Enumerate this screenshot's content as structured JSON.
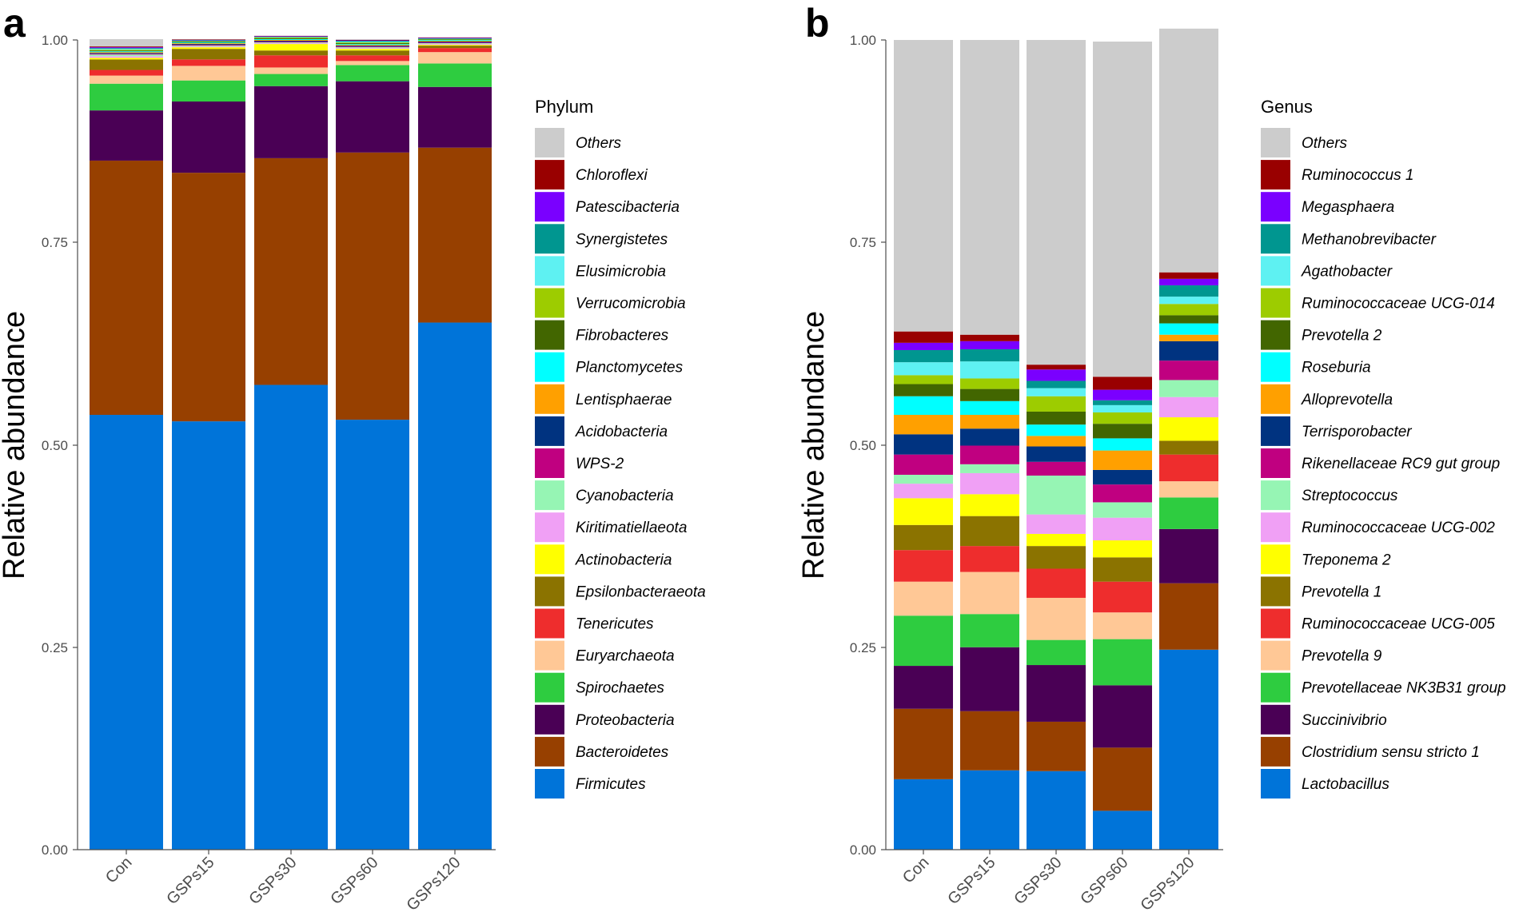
{
  "chart_data": [
    {
      "panel_label": "a",
      "type": "bar",
      "stacked": true,
      "ylabel": "Relative abundance",
      "ylim": [
        0,
        1
      ],
      "yticks": [
        "0.00",
        "0.25",
        "0.50",
        "0.75",
        "1.00"
      ],
      "categories": [
        "Con",
        "GSPs15",
        "GSPs30",
        "GSPs60",
        "GSPs120"
      ],
      "legend": {
        "title": "Phylum",
        "placement": "right"
      },
      "series": [
        {
          "name": "Firmicutes",
          "color": "#0074D9",
          "values": [
            0.537,
            0.529,
            0.574,
            0.531,
            0.651
          ]
        },
        {
          "name": "Bacteroidetes",
          "color": "#974000",
          "values": [
            0.314,
            0.307,
            0.28,
            0.33,
            0.216
          ]
        },
        {
          "name": "Proteobacteria",
          "color": "#4A0055",
          "values": [
            0.062,
            0.088,
            0.089,
            0.088,
            0.075
          ]
        },
        {
          "name": "Spirochaetes",
          "color": "#2ECC40",
          "values": [
            0.033,
            0.026,
            0.015,
            0.02,
            0.029
          ]
        },
        {
          "name": "Euryarchaeota",
          "color": "#FFC896",
          "values": [
            0.01,
            0.018,
            0.008,
            0.005,
            0.014
          ]
        },
        {
          "name": "Tenericutes",
          "color": "#EE2D2D",
          "values": [
            0.007,
            0.008,
            0.015,
            0.007,
            0.005
          ]
        },
        {
          "name": "Epsilonbacteraeota",
          "color": "#8B7300",
          "values": [
            0.013,
            0.013,
            0.006,
            0.006,
            0.003
          ]
        },
        {
          "name": "Actinobacteria",
          "color": "#FFFF00",
          "values": [
            0.002,
            0.002,
            0.008,
            0.002,
            0.001
          ]
        },
        {
          "name": "Kiritimatiellaeota",
          "color": "#F0A0F5",
          "values": [
            0.002,
            0.001,
            0.001,
            0.001,
            0.001
          ]
        },
        {
          "name": "Cyanobacteria",
          "color": "#96F5B4",
          "values": [
            0.002,
            0.001,
            0.001,
            0.001,
            0.001
          ]
        },
        {
          "name": "WPS-2",
          "color": "#C00080",
          "values": [
            0.001,
            0.001,
            0.001,
            0.001,
            0.001
          ]
        },
        {
          "name": "Acidobacteria",
          "color": "#003380",
          "values": [
            0.001,
            0.001,
            0.001,
            0.001,
            0.001
          ]
        },
        {
          "name": "Lentisphaerae",
          "color": "#FFA000",
          "values": [
            0.001,
            0.001,
            0.001,
            0.001,
            0.001
          ]
        },
        {
          "name": "Planctomycetes",
          "color": "#00FFFF",
          "values": [
            0.001,
            0.001,
            0.001,
            0.001,
            0.001
          ]
        },
        {
          "name": "Fibrobacteres",
          "color": "#426600",
          "values": [
            0.001,
            0.001,
            0.001,
            0.001,
            0.0005
          ]
        },
        {
          "name": "Verrucomicrobia",
          "color": "#9DCC00",
          "values": [
            0.001,
            0.0005,
            0.001,
            0.001,
            0.0005
          ]
        },
        {
          "name": "Elusimicrobia",
          "color": "#5EF1F2",
          "values": [
            0.001,
            0.0005,
            0.0005,
            0.001,
            0.0005
          ]
        },
        {
          "name": "Synergistetes",
          "color": "#009690",
          "values": [
            0.001,
            0.0005,
            0.0005,
            0.001,
            0.0005
          ]
        },
        {
          "name": "Patescibacteria",
          "color": "#7A00FF",
          "values": [
            0.001,
            0.0005,
            0.0005,
            0.0005,
            0.0005
          ]
        },
        {
          "name": "Chloroflexi",
          "color": "#990000",
          "values": [
            0.001,
            0.0005,
            0.0005,
            0.0005,
            0.0005
          ]
        },
        {
          "name": "Others",
          "color": "#CCCCCC",
          "values": [
            0.009,
            0.0005,
            0.0005,
            0.001,
            0.0005
          ]
        }
      ]
    },
    {
      "panel_label": "b",
      "type": "bar",
      "stacked": true,
      "ylabel": "Relative abundance",
      "ylim": [
        0,
        1
      ],
      "yticks": [
        "0.00",
        "0.25",
        "0.50",
        "0.75",
        "1.00"
      ],
      "categories": [
        "Con",
        "GSPs15",
        "GSPs30",
        "GSPs60",
        "GSPs120"
      ],
      "legend": {
        "title": "Genus",
        "placement": "right"
      },
      "series": [
        {
          "name": "Lactobacillus",
          "color": "#0074D9",
          "values": [
            0.087,
            0.098,
            0.097,
            0.048,
            0.247
          ]
        },
        {
          "name": "Clostridium sensu stricto 1",
          "color": "#974000",
          "values": [
            0.087,
            0.073,
            0.061,
            0.078,
            0.082
          ]
        },
        {
          "name": "Succinivibrio",
          "color": "#4A0055",
          "values": [
            0.053,
            0.079,
            0.07,
            0.077,
            0.067
          ]
        },
        {
          "name": "Prevotellaceae NK3B31 group",
          "color": "#2ECC40",
          "values": [
            0.062,
            0.041,
            0.031,
            0.057,
            0.039
          ]
        },
        {
          "name": "Prevotella 9",
          "color": "#FFC896",
          "values": [
            0.042,
            0.052,
            0.052,
            0.033,
            0.02
          ]
        },
        {
          "name": "Ruminococcaceae UCG-005",
          "color": "#EE2D2D",
          "values": [
            0.039,
            0.032,
            0.036,
            0.038,
            0.033
          ]
        },
        {
          "name": "Prevotella 1",
          "color": "#8B7300",
          "values": [
            0.031,
            0.037,
            0.028,
            0.03,
            0.017
          ]
        },
        {
          "name": "Treponema 2",
          "color": "#FFFF00",
          "values": [
            0.033,
            0.027,
            0.015,
            0.021,
            0.029
          ]
        },
        {
          "name": "Ruminococcaceae UCG-002",
          "color": "#F0A0F5",
          "values": [
            0.018,
            0.026,
            0.024,
            0.028,
            0.025
          ]
        },
        {
          "name": "Streptococcus",
          "color": "#96F5B4",
          "values": [
            0.011,
            0.011,
            0.048,
            0.019,
            0.021
          ]
        },
        {
          "name": "Rikenellaceae RC9 gut group",
          "color": "#C00080",
          "values": [
            0.025,
            0.023,
            0.017,
            0.022,
            0.024
          ]
        },
        {
          "name": "Terrisporobacter",
          "color": "#003380",
          "values": [
            0.025,
            0.021,
            0.019,
            0.018,
            0.024
          ]
        },
        {
          "name": "Alloprevotella",
          "color": "#FFA000",
          "values": [
            0.024,
            0.017,
            0.013,
            0.024,
            0.008
          ]
        },
        {
          "name": "Roseburia",
          "color": "#00FFFF",
          "values": [
            0.023,
            0.017,
            0.014,
            0.015,
            0.014
          ]
        },
        {
          "name": "Prevotella 2",
          "color": "#426600",
          "values": [
            0.015,
            0.015,
            0.016,
            0.018,
            0.01
          ]
        },
        {
          "name": "Ruminococcaceae UCG-014",
          "color": "#9DCC00",
          "values": [
            0.011,
            0.013,
            0.019,
            0.014,
            0.014
          ]
        },
        {
          "name": "Agathobacter",
          "color": "#5EF1F2",
          "values": [
            0.016,
            0.021,
            0.01,
            0.009,
            0.009
          ]
        },
        {
          "name": "Methanobrevibacter",
          "color": "#009690",
          "values": [
            0.015,
            0.015,
            0.009,
            0.006,
            0.014
          ]
        },
        {
          "name": "Megasphaera",
          "color": "#7A00FF",
          "values": [
            0.009,
            0.01,
            0.014,
            0.013,
            0.008
          ]
        },
        {
          "name": "Ruminococcus 1",
          "color": "#990000",
          "values": [
            0.014,
            0.008,
            0.006,
            0.016,
            0.008
          ]
        },
        {
          "name": "Others",
          "color": "#CCCCCC",
          "values": [
            0.36,
            0.364,
            0.401,
            0.414,
            0.301
          ]
        }
      ]
    }
  ]
}
